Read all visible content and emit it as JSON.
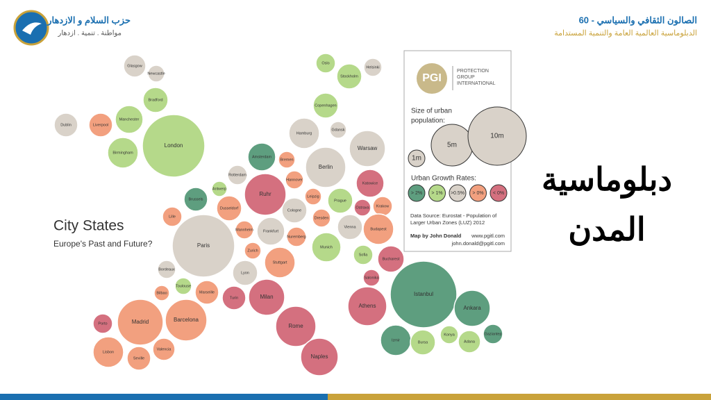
{
  "header": {
    "party_name": "حزب السلام و الازدهار",
    "party_slogan": "مواطنة . تنمية . ازدهار",
    "salon_title": "الصالون الثقافي والسياسي - 60",
    "salon_subtitle": "الدبلوماسية العالمية العامة والتنمية المستدامة"
  },
  "slide_title": "دبلوماسية المدن",
  "map": {
    "title": "City States",
    "subtitle": "Europe's Past and Future?",
    "nodes": [
      {
        "label": "Glasgow",
        "color": "#d9d2c9"
      },
      {
        "label": "Newcastle",
        "color": "#d9d2c9"
      },
      {
        "label": "Bradford",
        "color": "#b5d98a"
      },
      {
        "label": "Dublin",
        "color": "#d9d2c9"
      },
      {
        "label": "Liverpool",
        "color": "#f2a07f"
      },
      {
        "label": "Manchester",
        "color": "#b5d98a"
      },
      {
        "label": "Birmingham",
        "color": "#b5d98a"
      },
      {
        "label": "London",
        "color": "#b5d98a"
      },
      {
        "label": "Oslo",
        "color": "#b5d98a"
      },
      {
        "label": "Helsinki",
        "color": "#d9d2c9"
      },
      {
        "label": "Stockholm",
        "color": "#b5d98a"
      },
      {
        "label": "Copenhagen",
        "color": "#b5d98a"
      },
      {
        "label": "Gdansk",
        "color": "#d9d2c9"
      },
      {
        "label": "Hamburg",
        "color": "#d9d2c9"
      },
      {
        "label": "Warsaw",
        "color": "#d9d2c9"
      },
      {
        "label": "Amsterdam",
        "color": "#5e9e7f"
      },
      {
        "label": "Bremen",
        "color": "#f2a07f"
      },
      {
        "label": "Berlin",
        "color": "#d9d2c9"
      },
      {
        "label": "Rotterdam",
        "color": "#d9d2c9"
      },
      {
        "label": "Hannover",
        "color": "#f2a07f"
      },
      {
        "label": "Katowice",
        "color": "#d4707f"
      },
      {
        "label": "Antwerp",
        "color": "#b5d98a"
      },
      {
        "label": "Brussels",
        "color": "#5e9e7f"
      },
      {
        "label": "Ruhr",
        "color": "#d4707f"
      },
      {
        "label": "Leipzig",
        "color": "#f2a07f"
      },
      {
        "label": "Prague",
        "color": "#b5d98a"
      },
      {
        "label": "Ostrava",
        "color": "#d4707f"
      },
      {
        "label": "Krakow",
        "color": "#f2a07f"
      },
      {
        "label": "Dusseldorf",
        "color": "#f2a07f"
      },
      {
        "label": "Lille",
        "color": "#f2a07f"
      },
      {
        "label": "Cologne",
        "color": "#d9d2c9"
      },
      {
        "label": "Dresden",
        "color": "#f2a07f"
      },
      {
        "label": "Vienna",
        "color": "#d9d2c9"
      },
      {
        "label": "Budapest",
        "color": "#f2a07f"
      },
      {
        "label": "Mannheim",
        "color": "#f2a07f"
      },
      {
        "label": "Frankfurt",
        "color": "#d9d2c9"
      },
      {
        "label": "Nuremberg",
        "color": "#f2a07f"
      },
      {
        "label": "Paris",
        "color": "#d9d2c9"
      },
      {
        "label": "Munich",
        "color": "#b5d98a"
      },
      {
        "label": "Zurich",
        "color": "#f2a07f"
      },
      {
        "label": "Sofia",
        "color": "#b5d98a"
      },
      {
        "label": "Bucharest",
        "color": "#d4707f"
      },
      {
        "label": "Stuttgart",
        "color": "#f2a07f"
      },
      {
        "label": "Bordeaux",
        "color": "#d9d2c9"
      },
      {
        "label": "Lyon",
        "color": "#d9d2c9"
      },
      {
        "label": "Salonika",
        "color": "#d4707f"
      },
      {
        "label": "Toulouse",
        "color": "#b5d98a"
      },
      {
        "label": "Bilbao",
        "color": "#f2a07f"
      },
      {
        "label": "Marseille",
        "color": "#f2a07f"
      },
      {
        "label": "Turin",
        "color": "#d4707f"
      },
      {
        "label": "Milan",
        "color": "#d4707f"
      },
      {
        "label": "Istanbul",
        "color": "#5e9e7f"
      },
      {
        "label": "Athens",
        "color": "#d4707f"
      },
      {
        "label": "Ankara",
        "color": "#5e9e7f"
      },
      {
        "label": "Porto",
        "color": "#d4707f"
      },
      {
        "label": "Madrid",
        "color": "#f2a07f"
      },
      {
        "label": "Barcelona",
        "color": "#f2a07f"
      },
      {
        "label": "Rome",
        "color": "#d4707f"
      },
      {
        "label": "Gaziantep",
        "color": "#5e9e7f"
      },
      {
        "label": "Konya",
        "color": "#b5d98a"
      },
      {
        "label": "Izmir",
        "color": "#5e9e7f"
      },
      {
        "label": "Bursa",
        "color": "#b5d98a"
      },
      {
        "label": "Adana",
        "color": "#b5d98a"
      },
      {
        "label": "Valencia",
        "color": "#f2a07f"
      },
      {
        "label": "Lisbon",
        "color": "#f2a07f"
      },
      {
        "label": "Seville",
        "color": "#f2a07f"
      },
      {
        "label": "Naples",
        "color": "#d4707f"
      }
    ]
  },
  "legend": {
    "logo": "PGI",
    "company": [
      "PROTECTION",
      "GROUP",
      "INTERNATIONAL"
    ],
    "size_title": [
      "Size of urban",
      "population:"
    ],
    "sizes": [
      "1m",
      "5m",
      "10m"
    ],
    "growth_title": "Urban Growth Rates:",
    "growth": [
      {
        "label": "> 2%",
        "color": "#5e9e7f"
      },
      {
        "label": "> 1%",
        "color": "#b5d98a"
      },
      {
        "label": ">0.5%",
        "color": "#d9d2c9"
      },
      {
        "label": "> 0%",
        "color": "#f2a07f"
      },
      {
        "label": "< 0%",
        "color": "#d4707f"
      }
    ],
    "source": [
      "Data Source: Eurostat - Population of",
      "Larger Urban Zones (LUZ) 2012"
    ],
    "author": "Map by John Donald",
    "website": "www.pgitl.com",
    "email": "john.donald@pgitl.com"
  }
}
